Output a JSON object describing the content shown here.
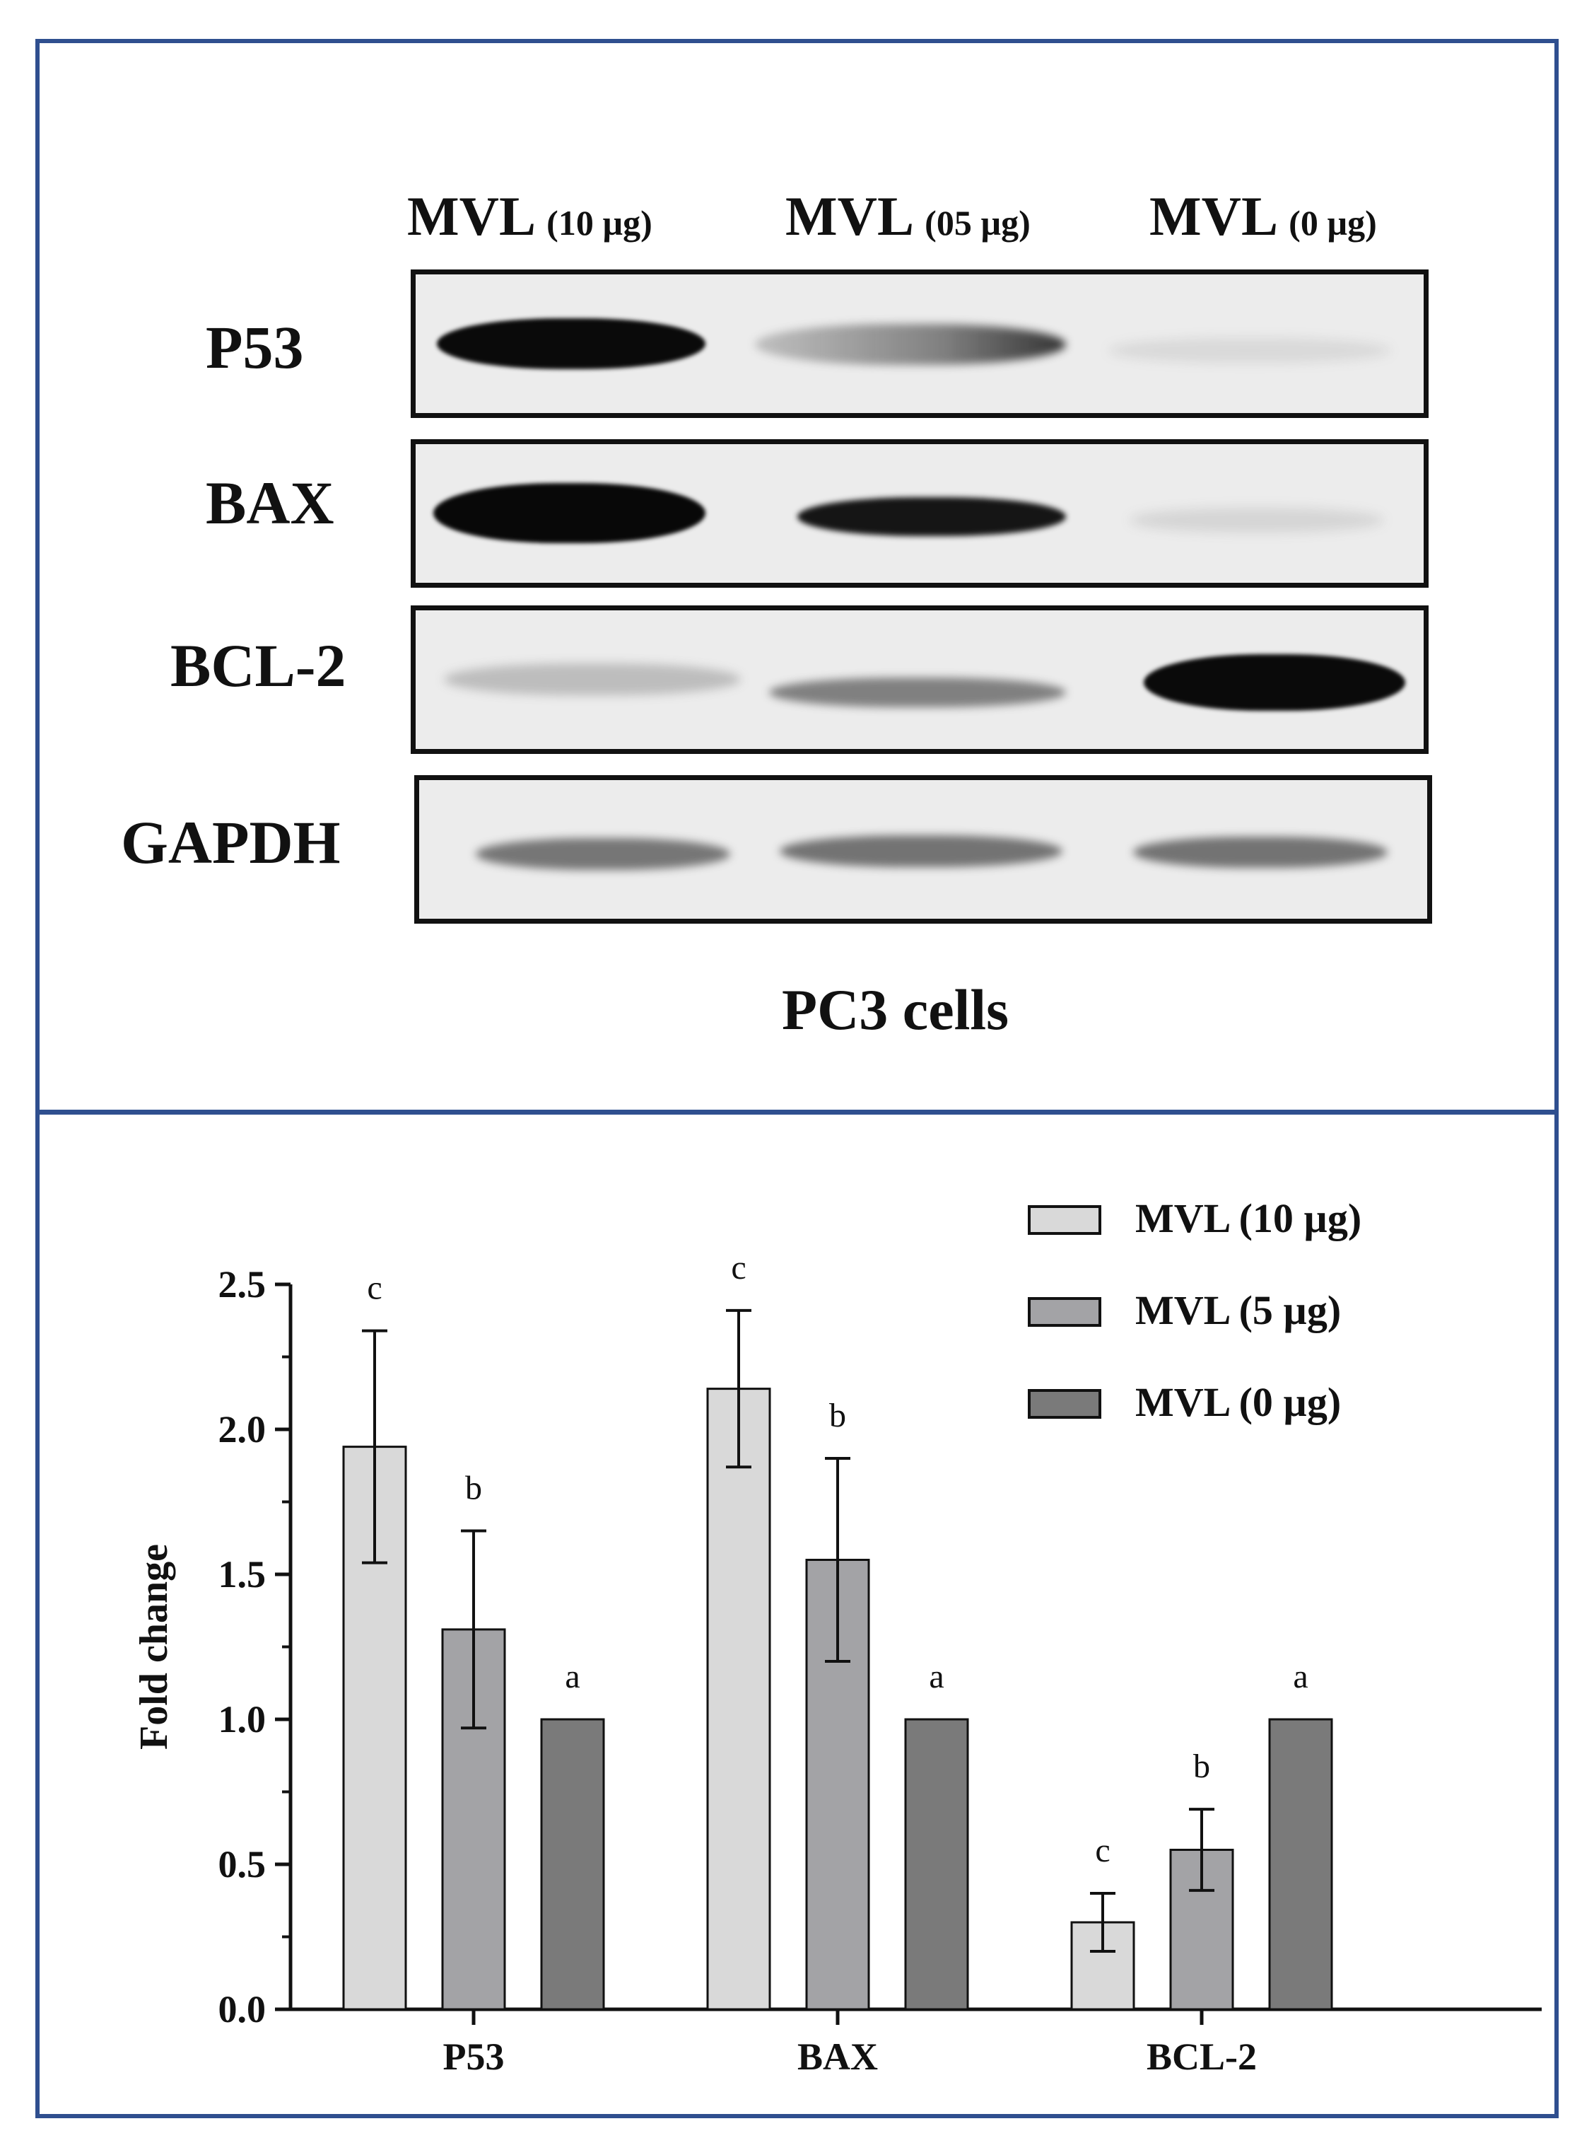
{
  "blot": {
    "lanes": [
      {
        "name": "MVL",
        "dose": "(10 µg)"
      },
      {
        "name": "MVL",
        "dose": "(05 µg)"
      },
      {
        "name": "MVL",
        "dose": "(0 µg)"
      }
    ],
    "rows": [
      "P53",
      "BAX",
      "BCL-2",
      "GAPDH"
    ],
    "footer": "PC3 cells"
  },
  "chart_data": {
    "type": "bar",
    "categories": [
      "P53",
      "BAX",
      "BCL-2"
    ],
    "ylabel": "Fold change",
    "xlabel": "",
    "ylim": [
      0.0,
      2.5
    ],
    "yticks": [
      "0.0",
      "0.5",
      "1.0",
      "1.5",
      "2.0",
      "2.5"
    ],
    "legend_position": "top-right",
    "series": [
      {
        "name": "MVL (10 µg)",
        "color": "#d9d9d9",
        "values": [
          1.94,
          2.14,
          0.3
        ],
        "errors": [
          0.4,
          0.27,
          0.1
        ],
        "letters": [
          "c",
          "c",
          "c"
        ]
      },
      {
        "name": "MVL (5 µg)",
        "color": "#a3a3a6",
        "values": [
          1.31,
          1.55,
          0.55
        ],
        "errors": [
          0.34,
          0.35,
          0.14
        ],
        "letters": [
          "b",
          "b",
          "b"
        ]
      },
      {
        "name": "MVL (0 µg)",
        "color": "#7a7a7a",
        "values": [
          1.0,
          1.0,
          1.0
        ],
        "errors": [
          0,
          0,
          0
        ],
        "letters": [
          "a",
          "a",
          "a"
        ]
      }
    ]
  }
}
